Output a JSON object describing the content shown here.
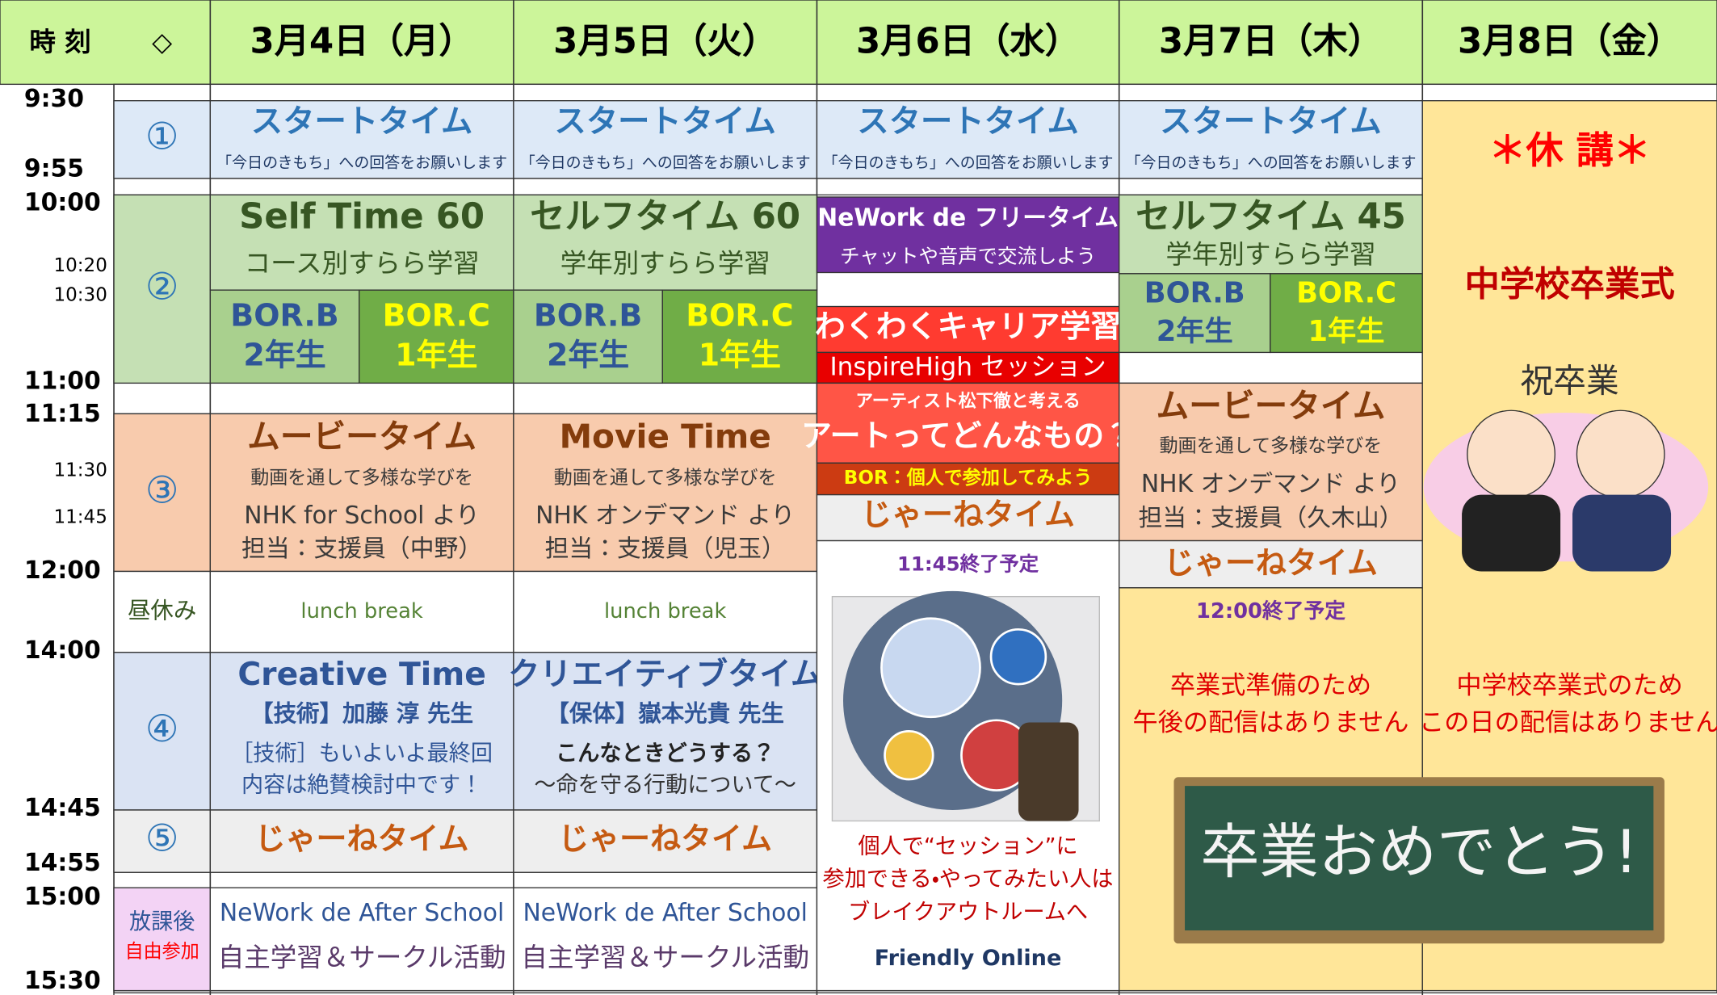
{
  "header": {
    "time_label": "時 刻",
    "marker": "◇",
    "days": [
      "3月4日（月）",
      "3月5日（火）",
      "3月6日（水）",
      "3月7日（木）",
      "3月8日（金）"
    ]
  },
  "times": [
    "9:30",
    "9:55",
    "10:00",
    "10:20",
    "10:30",
    "11:00",
    "11:15",
    "11:30",
    "11:45",
    "12:00",
    "14:00",
    "14:45",
    "14:55",
    "15:00",
    "15:30"
  ],
  "periods": [
    "①",
    "②",
    "③",
    "昼休み",
    "④",
    "⑤",
    "放課後",
    "自由参加"
  ],
  "blocks": [
    {
      "lines": [
        "スタートタイム",
        "「今日のきもち」への回答をお願いします"
      ]
    },
    {
      "lines": [
        "Self Time 60",
        "コース別すらら学習"
      ]
    },
    {
      "lines": [
        "BOR.B",
        "2年生"
      ]
    },
    {
      "lines": [
        "BOR.C",
        "1年生"
      ]
    },
    {
      "lines": [
        "ムービータイム",
        "動画を通して多様な学びを",
        "NHK for School より",
        "担当：支援員（中野）"
      ]
    },
    {
      "lines": [
        "lunch break"
      ]
    },
    {
      "lines": [
        "Creative Time",
        "【技術】加藤 淳 先生",
        "［技術］もいよいよ最終回",
        "内容は絶賛検討中です！"
      ]
    },
    {
      "lines": [
        "じゃーねタイム"
      ]
    },
    {
      "lines": [
        "NeWork de After School",
        "自主学習＆サークル活動"
      ]
    },
    {
      "lines": [
        "スタートタイム",
        "「今日のきもち」への回答をお願いします"
      ]
    },
    {
      "lines": [
        "セルフタイム 60",
        "学年別すらら学習"
      ]
    },
    {
      "lines": [
        "BOR.B",
        "2年生"
      ]
    },
    {
      "lines": [
        "BOR.C",
        "1年生"
      ]
    },
    {
      "lines": [
        "Movie Time",
        "動画を通して多様な学びを",
        "NHK オンデマンド より",
        "担当：支援員（児玉）"
      ]
    },
    {
      "lines": [
        "lunch break"
      ]
    },
    {
      "lines": [
        "クリエイティブタイム",
        "【保体】嶽本光貴 先生",
        "こんなときどうする？",
        "〜命を守る行動について〜"
      ]
    },
    {
      "lines": [
        "じゃーねタイム"
      ]
    },
    {
      "lines": [
        "NeWork de After School",
        "自主学習＆サークル活動"
      ]
    },
    {
      "lines": [
        "スタートタイム",
        "「今日のきもち」への回答をお願いします"
      ]
    },
    {
      "lines": [
        "NeWork de フリータイム",
        "チャットや音声で交流しよう"
      ]
    },
    {
      "lines": [
        "わくわくキャリア学習"
      ]
    },
    {
      "lines": [
        "InspireHigh セッション"
      ]
    },
    {
      "lines": [
        "アーティスト松下徹と考える",
        "アートってどんなもの？"
      ]
    },
    {
      "lines": [
        "BOR：個人で参加してみよう"
      ]
    },
    {
      "lines": [
        "じゃーねタイム"
      ]
    },
    {
      "lines": [
        "11:45終了予定",
        "個人で“セッション”に",
        "参加できる・やってみたい人は",
        "ブレイクアウトルームへ",
        "Friendly Online"
      ]
    },
    {
      "lines": [
        "スタートタイム",
        "「今日のきもち」への回答をお願いします"
      ]
    },
    {
      "lines": [
        "セルフタイム 45",
        "学年別すらら学習"
      ]
    },
    {
      "lines": [
        "BOR.B",
        "2年生"
      ]
    },
    {
      "lines": [
        "BOR.C",
        "1年生"
      ]
    },
    {
      "lines": [
        "ムービータイム",
        "動画を通して多様な学びを",
        "NHK オンデマンド より",
        "担当：支援員（久木山）"
      ]
    },
    {
      "lines": [
        "じゃーねタイム"
      ]
    },
    {
      "lines": [
        "12:00終了予定",
        "卒業式準備のため",
        "午後の配信はありません"
      ]
    },
    {
      "lines": [
        "＊休 講＊",
        "中学校卒業式",
        "祝卒業",
        "中学校卒業式のため",
        "この日の配信はありません"
      ]
    }
  ],
  "chalkboard_text": "卒業おめでとう!"
}
